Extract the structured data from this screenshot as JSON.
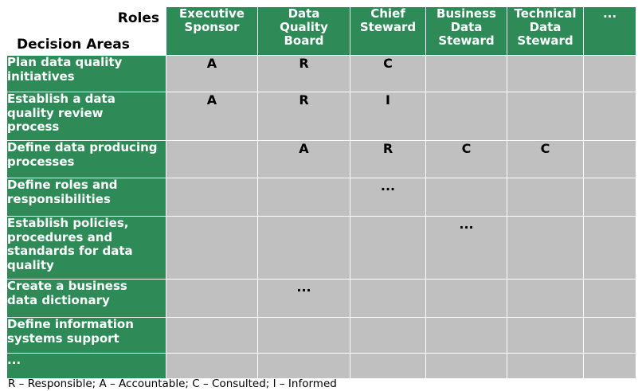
{
  "header": {
    "roles_label": "Roles",
    "decision_areas_label": "Decision Areas"
  },
  "roles": [
    "Executive\nSponsor",
    "Data\nQuality\nBoard",
    "Chief\nSteward",
    "Business\nData\nSteward",
    "Technical\nData\nSteward",
    "..."
  ],
  "rows": [
    {
      "area": "Plan data quality\ninitiatives",
      "cells": [
        "A",
        "R",
        "C",
        "",
        "",
        ""
      ]
    },
    {
      "area": "Establish a data\nquality review\nprocess",
      "cells": [
        "A",
        "R",
        "I",
        "",
        "",
        ""
      ]
    },
    {
      "area": "Define data producing\nprocesses",
      "cells": [
        "",
        "A",
        "R",
        "C",
        "C",
        ""
      ]
    },
    {
      "area": "Define roles and\nresponsibilities",
      "cells": [
        "",
        "",
        "...",
        "",
        "",
        ""
      ]
    },
    {
      "area": "Establish policies,\nprocedures and\nstandards for data\nquality",
      "cells": [
        "",
        "",
        "",
        "...",
        "",
        ""
      ]
    },
    {
      "area": "Create a business\ndata dictionary",
      "cells": [
        "",
        "...",
        "",
        "",
        "",
        ""
      ]
    },
    {
      "area": "Define information\nsystems support",
      "cells": [
        "",
        "",
        "",
        "",
        "",
        ""
      ]
    },
    {
      "area": "...",
      "cells": [
        "",
        "",
        "",
        "",
        "",
        ""
      ]
    }
  ],
  "legend": "R – Responsible; A – Accountable; C – Consulted; I – Informed",
  "colors": {
    "header_green": "#2e8b57",
    "cell_gray": "#c0c0c0"
  }
}
